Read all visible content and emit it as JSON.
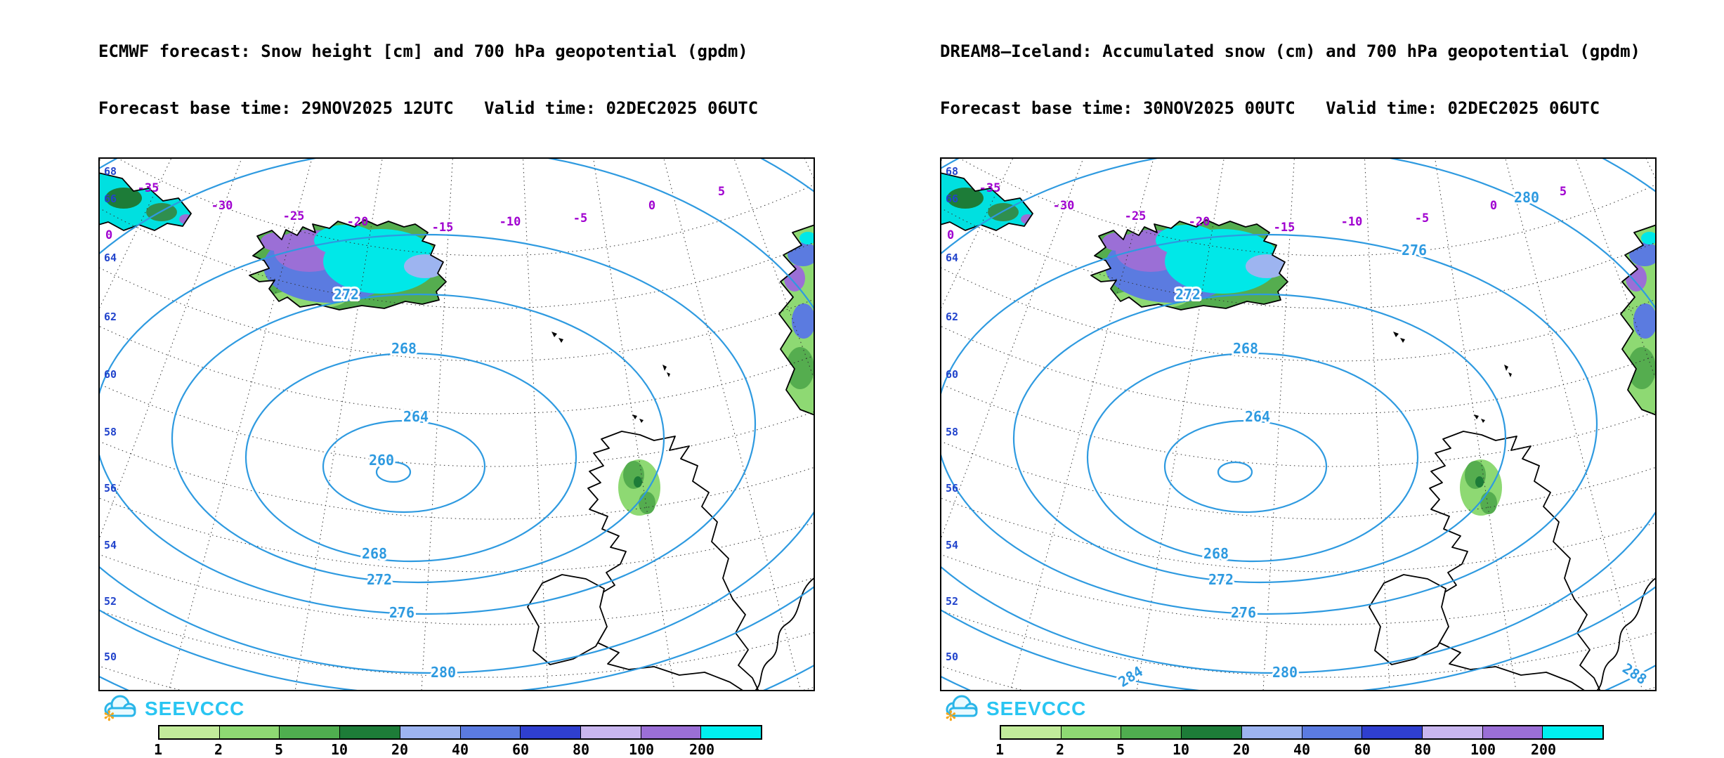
{
  "panels": [
    {
      "title": "ECMWF forecast: Snow height [cm] and 700 hPa geopotential (gpdm)",
      "subtitle": "Forecast base time: 29NOV2025 12UTC   Valid time: 02DEC2025 06UTC",
      "contour_labels": [
        "272",
        "268",
        "264",
        "260",
        "268",
        "272",
        "276",
        "280"
      ]
    },
    {
      "title": "DREAM8–Iceland: Accumulated snow (cm) and 700 hPa geopotential (gpdm)",
      "subtitle": "Forecast base time: 30NOV2025 00UTC   Valid time: 02DEC2025 06UTC",
      "contour_labels": [
        "272",
        "268",
        "264",
        "268",
        "272",
        "276",
        "280",
        "276",
        "280",
        "284",
        "288"
      ]
    }
  ],
  "map": {
    "lat_labels": [
      "68",
      "66",
      "64",
      "62",
      "60",
      "58",
      "56",
      "54",
      "52",
      "50"
    ],
    "temp_labels": [
      "-35",
      "-30",
      "-25",
      "-20",
      "-15",
      "-10",
      "-5",
      "0",
      "5",
      "0"
    ]
  },
  "logo": {
    "text": "SEEVCCC"
  },
  "legend": {
    "values": [
      "1",
      "2",
      "5",
      "10",
      "20",
      "40",
      "60",
      "80",
      "100",
      "200"
    ],
    "colors": [
      "#c2eb9b",
      "#8ed973",
      "#4fae4f",
      "#1d7c38",
      "#9db4f0",
      "#5b7be0",
      "#2f3fcf",
      "#c9b6ef",
      "#9b6fd6",
      "#00f0f0"
    ]
  },
  "colors": {
    "contour_blue": "#2e9ae0",
    "temp_label_purple": "#a000d0",
    "lat_label_blue": "#2244cc",
    "logo_cyan": "#29c5f2",
    "snowflake_orange": "#f7a61b",
    "snow_cyan": "#00e8e8"
  },
  "chart_data": {
    "type": "contour-map",
    "geopotential_levels_gpdm": [
      260,
      264,
      268,
      272,
      276,
      280,
      284,
      288
    ],
    "snow_legend_cm": [
      1,
      2,
      5,
      10,
      20,
      40,
      60,
      80,
      100,
      200
    ],
    "latitude_labels": [
      68,
      66,
      64,
      62,
      60,
      58,
      56,
      54,
      52,
      50
    ],
    "temperature_labels": [
      -35,
      -30,
      -25,
      -20,
      -15,
      -10,
      -5,
      0,
      5
    ],
    "low_center_label_left_panel": 260,
    "region": "North Atlantic: Greenland, Iceland, Faroe, UK, Ireland, Norway"
  }
}
